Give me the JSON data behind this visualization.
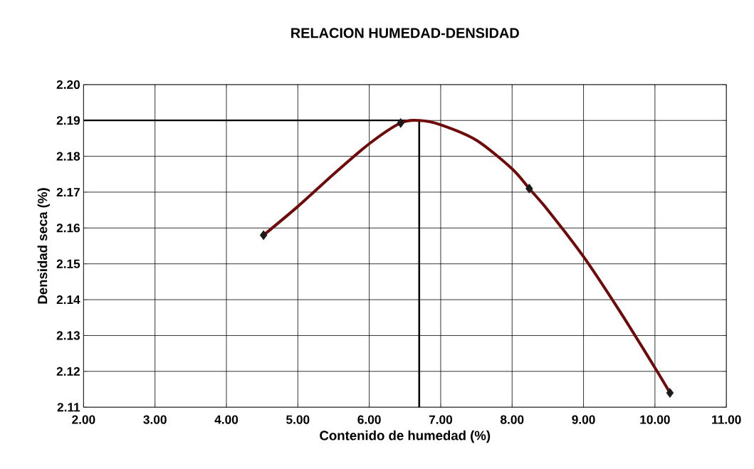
{
  "chart_data": {
    "type": "line",
    "title": "RELACION HUMEDAD-DENSIDAD",
    "xlabel": "Contenido de humedad (%)",
    "ylabel": "Densidad seca (%)",
    "xlim": [
      2,
      11
    ],
    "ylim": [
      2.11,
      2.2
    ],
    "xticks": [
      {
        "value": 2,
        "label": "2.00"
      },
      {
        "value": 3,
        "label": "3.00"
      },
      {
        "value": 4,
        "label": "4.00"
      },
      {
        "value": 5,
        "label": "5.00"
      },
      {
        "value": 6,
        "label": "6.00"
      },
      {
        "value": 7,
        "label": "7.00"
      },
      {
        "value": 8,
        "label": "8.00"
      },
      {
        "value": 9,
        "label": "9.00"
      },
      {
        "value": 10,
        "label": "10.00"
      },
      {
        "value": 11,
        "label": "11.00"
      }
    ],
    "yticks": [
      2.11,
      2.12,
      2.13,
      2.14,
      2.15,
      2.16,
      2.17,
      2.18,
      2.19,
      {
        "value": 2.2,
        "label": "2.20"
      }
    ],
    "grid": true,
    "series": [
      {
        "color": "#6e0a0a",
        "marker": "none",
        "x": [
          4.52,
          5.0,
          5.5,
          6.0,
          6.44,
          6.7,
          7.0,
          7.5,
          8.0,
          8.24,
          8.5,
          9.0,
          9.5,
          10.0,
          10.21
        ],
        "values": [
          2.158,
          2.166,
          2.175,
          2.1835,
          2.1893,
          2.19,
          2.1888,
          2.1845,
          2.1765,
          2.171,
          2.165,
          2.152,
          2.137,
          2.121,
          2.114
        ]
      },
      {
        "type": "scatter",
        "color": "#1a1a1a",
        "marker": "diamond",
        "x": [
          4.52,
          6.44,
          8.24,
          10.21
        ],
        "values": [
          2.158,
          2.1893,
          2.171,
          2.114
        ]
      }
    ],
    "ref_lines": [
      {
        "axis": "y",
        "value": 2.19,
        "color": "#000000"
      },
      {
        "axis": "x",
        "value": 6.7,
        "color": "#000000"
      }
    ]
  }
}
